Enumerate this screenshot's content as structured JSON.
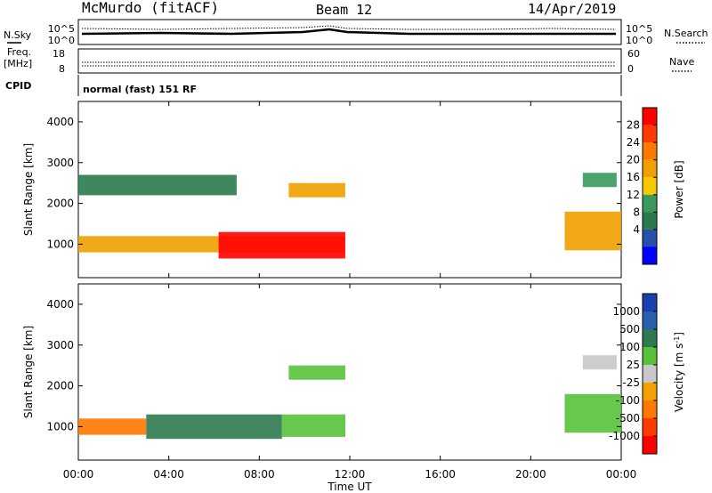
{
  "header": {
    "station": "McMurdo (fitACF)",
    "beam": "Beam 12",
    "date": "14/Apr/2019"
  },
  "status_panel": {
    "nsky_label": "N.Sky",
    "nsearch_label": "N.Search",
    "noise_ticks": [
      "10^5",
      "10^0"
    ],
    "noise_ticks_right": [
      "10^5",
      "10^0"
    ],
    "freq_label": "Freq.",
    "freq_unit": "[MHz]",
    "freq_ticks": [
      "18",
      "8"
    ],
    "nave_label": "Nave",
    "nave_ticks": [
      "60",
      "0"
    ],
    "cpid_label": "CPID",
    "cpid_value": "normal (fast) 151 RF"
  },
  "power_colorbar": {
    "label": "Power [dB]",
    "ticks": [
      "28",
      "24",
      "20",
      "16",
      "12",
      "8",
      "4"
    ],
    "colors": [
      "#ff0000",
      "#ff3c00",
      "#ff7800",
      "#f0a000",
      "#f5c800",
      "#3a9a5b",
      "#2a7a4e",
      "#2a4fa8",
      "#0000ff"
    ]
  },
  "velocity_colorbar": {
    "label": "Velocity [m s",
    "label_sup": "-1",
    "label_end": "]",
    "ticks": [
      "1000",
      "500",
      "100",
      "25",
      "-25",
      "-100",
      "-500",
      "-1000"
    ],
    "colors": [
      "#1a3fb0",
      "#2a5fb0",
      "#2f7a4f",
      "#56c23a",
      "#c8c8c8",
      "#f5a000",
      "#ff7800",
      "#ff3c00",
      "#ff0000"
    ]
  },
  "chart_data": [
    {
      "type": "heatmap",
      "title": "Power",
      "ylabel": "Slant Range [km]",
      "ylim": [
        180,
        4500
      ],
      "yticks": [
        "4000",
        "3000",
        "2000",
        "1000"
      ],
      "xlim": [
        "00:00",
        "24:00"
      ],
      "xticks": [
        "00:00",
        "04:00",
        "08:00",
        "12:00",
        "16:00",
        "20:00",
        "00:00"
      ],
      "colorbar": "Power [dB]",
      "regions": [
        {
          "t0": 0.0,
          "t1": 11.8,
          "r0": 800,
          "r1": 1200,
          "value": 18
        },
        {
          "t0": 6.2,
          "t1": 11.8,
          "r0": 650,
          "r1": 1300,
          "value": 30
        },
        {
          "t0": 9.3,
          "t1": 11.8,
          "r0": 2150,
          "r1": 2500,
          "value": 16
        },
        {
          "t0": 0.0,
          "t1": 7.0,
          "r0": 2200,
          "r1": 2700,
          "value": 6
        },
        {
          "t0": 21.5,
          "t1": 24.0,
          "r0": 850,
          "r1": 1800,
          "value": 16
        },
        {
          "t0": 22.3,
          "t1": 23.8,
          "r0": 2400,
          "r1": 2750,
          "value": 10
        }
      ]
    },
    {
      "type": "heatmap",
      "title": "Velocity",
      "ylabel": "Slant Range [km]",
      "ylim": [
        180,
        4500
      ],
      "yticks": [
        "4000",
        "3000",
        "2000",
        "1000"
      ],
      "xlim": [
        "00:00",
        "24:00"
      ],
      "xticks": [
        "00:00",
        "04:00",
        "08:00",
        "12:00",
        "16:00",
        "20:00",
        "00:00"
      ],
      "xlabel": "Time UT",
      "colorbar": "Velocity [m s-1]",
      "regions": [
        {
          "t0": 0.0,
          "t1": 3.0,
          "r0": 800,
          "r1": 1200,
          "value": -150
        },
        {
          "t0": 3.0,
          "t1": 9.0,
          "r0": 700,
          "r1": 1300,
          "value": 300
        },
        {
          "t0": 9.0,
          "t1": 11.8,
          "r0": 750,
          "r1": 1300,
          "value": 50
        },
        {
          "t0": 9.3,
          "t1": 11.8,
          "r0": 2150,
          "r1": 2500,
          "value": 60
        },
        {
          "t0": 21.5,
          "t1": 24.0,
          "r0": 850,
          "r1": 1800,
          "value": 40
        },
        {
          "t0": 22.3,
          "t1": 23.8,
          "r0": 2400,
          "r1": 2750,
          "value": 0
        }
      ]
    }
  ]
}
